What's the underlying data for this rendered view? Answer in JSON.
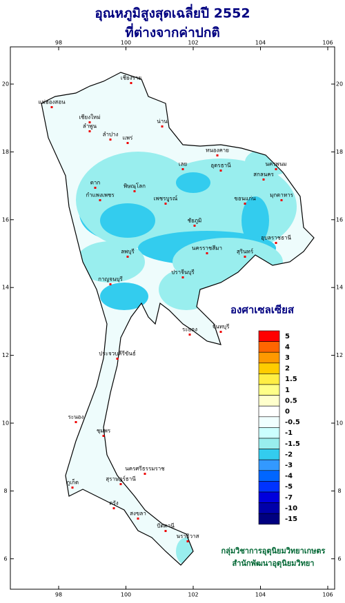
{
  "title": "อุณหภูมิสูงสุดเฉลี่ยปี  2552",
  "subtitle": "ที่ต่างจากค่าปกติ",
  "lon_ticks": [
    98,
    100,
    102,
    104,
    106
  ],
  "lat_ticks": [
    6,
    8,
    10,
    12,
    14,
    16,
    18,
    20
  ],
  "legend": {
    "title": "องศาเซลเซียส",
    "items": [
      {
        "label": 5,
        "color": "#ff0000"
      },
      {
        "label": 4,
        "color": "#ff6600"
      },
      {
        "label": 3,
        "color": "#ff9900"
      },
      {
        "label": 2,
        "color": "#ffcc00"
      },
      {
        "label": 1.5,
        "color": "#ffee44"
      },
      {
        "label": 1,
        "color": "#ffff88"
      },
      {
        "label": 0.5,
        "color": "#ffffcc"
      },
      {
        "label": 0,
        "color": "#ffffff"
      },
      {
        "label": -0.5,
        "color": "#f0ffff"
      },
      {
        "label": -1,
        "color": "#ccffff"
      },
      {
        "label": -1.5,
        "color": "#99eeee"
      },
      {
        "label": -2,
        "color": "#33ccee"
      },
      {
        "label": -3,
        "color": "#3399ff"
      },
      {
        "label": -4,
        "color": "#0066ff"
      },
      {
        "label": -5,
        "color": "#0033ff"
      },
      {
        "label": -7,
        "color": "#0000dd"
      },
      {
        "label": -10,
        "color": "#0000aa"
      },
      {
        "label": -15,
        "color": "#000080"
      }
    ]
  },
  "provinces": [
    "เชียงราย",
    "แม่ฮ่องสอน",
    "เชียงใหม่",
    "น่าน",
    "ลำพูน",
    "ลำปาง",
    "แพร่",
    "ตาก",
    "พิษณุโลก",
    "เลย",
    "หนองคาย",
    "อุดรธานี",
    "นครพนม",
    "สกลนคร",
    "มุกดาหาร",
    "ขอนแก่น",
    "กำแพงเพชร",
    "เพชรบูรณ์",
    "ชัยภูมิ",
    "อุบลราชธานี",
    "นครราชสีมา",
    "สุรินทร์",
    "ลพบุรี",
    "กาญจนบุรี",
    "ปราจีนบุรี",
    "ระยอง",
    "จันทบุรี",
    "ประจวบคีรีขันธ์",
    "ชุมพร",
    "ระนอง",
    "สุราษฎร์ธานี",
    "นครศรีธรรมราช",
    "ภูเก็ต",
    "ตรัง",
    "สงขลา",
    "ปัตตานี",
    "นราธิวาส"
  ],
  "footer": [
    "กลุ่มวิชาการอุตุนิยมวิทยาเกษตร",
    "สำนักพัฒนาอุตุนิยมวิทยา"
  ]
}
